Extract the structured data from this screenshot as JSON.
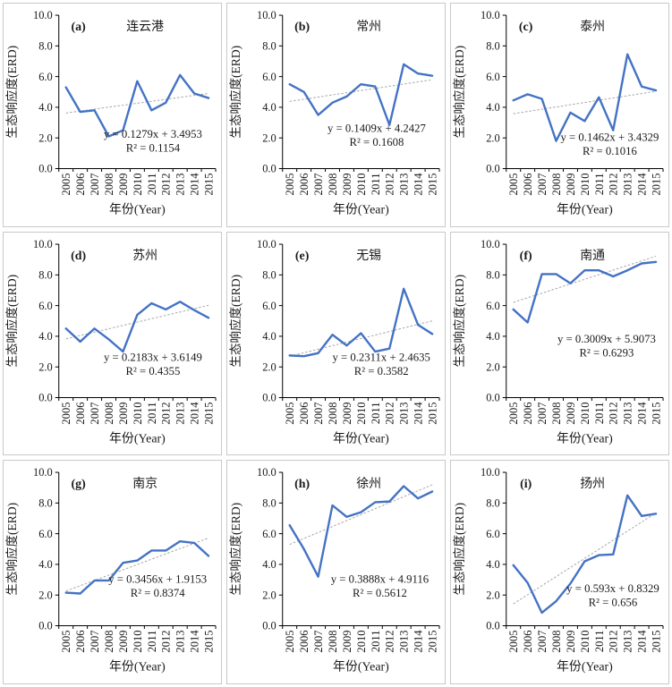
{
  "figure": {
    "ylabel": "生态响应度(ERD)",
    "xlabel": "年份(Year)",
    "years": [
      "2005",
      "2006",
      "2007",
      "2008",
      "2009",
      "2010",
      "2011",
      "2012",
      "2013",
      "2014",
      "2015"
    ],
    "yticks": [
      "0.0",
      "2.0",
      "4.0",
      "6.0",
      "8.0",
      "10.0"
    ],
    "ylim": [
      0,
      10
    ],
    "line_color": "#4472C4",
    "trend_color": "#a6a6a6",
    "axis_color": "#000000",
    "title_color": "#3d3d3d"
  },
  "chart_data": [
    {
      "type": "line",
      "panel": "(a)",
      "title": "连云港",
      "values": [
        5.3,
        3.7,
        3.8,
        2.1,
        2.5,
        5.7,
        3.8,
        4.3,
        6.1,
        4.9,
        4.6
      ],
      "trend": {
        "slope": 0.1279,
        "intercept": 3.4953
      },
      "equation": "y = 0.1279x + 3.4953",
      "r2": "R² = 0.1154",
      "eq_pos": [
        0.6,
        0.8
      ]
    },
    {
      "type": "line",
      "panel": "(b)",
      "title": "常州",
      "values": [
        5.5,
        5.0,
        3.5,
        4.3,
        4.7,
        5.5,
        5.35,
        2.85,
        6.8,
        6.2,
        6.05
      ],
      "trend": {
        "slope": 0.1409,
        "intercept": 4.2427
      },
      "equation": "y = 0.1409x + 4.2427",
      "r2": "R² = 0.1608",
      "eq_pos": [
        0.6,
        0.76
      ]
    },
    {
      "type": "line",
      "panel": "(c)",
      "title": "泰州",
      "values": [
        4.45,
        4.85,
        4.55,
        1.8,
        3.65,
        3.1,
        4.65,
        2.5,
        7.45,
        5.35,
        5.1
      ],
      "trend": {
        "slope": 0.1462,
        "intercept": 3.4329
      },
      "equation": "y = 0.1462x + 3.4329",
      "r2": "R² = 0.1016",
      "eq_pos": [
        0.66,
        0.82
      ]
    },
    {
      "type": "line",
      "panel": "(d)",
      "title": "苏州",
      "values": [
        4.5,
        3.65,
        4.5,
        3.8,
        3.0,
        5.4,
        6.15,
        5.75,
        6.25,
        5.7,
        5.2
      ],
      "trend": {
        "slope": 0.2183,
        "intercept": 3.6149
      },
      "equation": "y = 0.2183x + 3.6149",
      "r2": "R² = 0.4355",
      "eq_pos": [
        0.6,
        0.76
      ]
    },
    {
      "type": "line",
      "panel": "(e)",
      "title": "无锡",
      "values": [
        2.75,
        2.7,
        2.9,
        4.1,
        3.4,
        4.2,
        3.0,
        3.2,
        7.1,
        4.75,
        4.15
      ],
      "trend": {
        "slope": 0.2311,
        "intercept": 2.4635
      },
      "equation": "y = 0.2311x + 2.4635",
      "r2": "R² = 0.3582",
      "eq_pos": [
        0.63,
        0.76
      ]
    },
    {
      "type": "line",
      "panel": "(f)",
      "title": "南通",
      "values": [
        5.75,
        4.9,
        8.05,
        8.05,
        7.45,
        8.3,
        8.3,
        7.9,
        8.3,
        8.75,
        8.85
      ],
      "trend": {
        "slope": 0.3009,
        "intercept": 5.9073
      },
      "equation": "y = 0.3009x + 5.9073",
      "r2": "R² = 0.6293",
      "eq_pos": [
        0.64,
        0.64
      ]
    },
    {
      "type": "line",
      "panel": "(g)",
      "title": "南京",
      "values": [
        2.15,
        2.1,
        2.95,
        2.95,
        4.1,
        4.25,
        4.9,
        4.9,
        5.5,
        5.4,
        4.55
      ],
      "trend": {
        "slope": 0.3456,
        "intercept": 1.9153
      },
      "equation": "y = 0.3456x + 1.9153",
      "r2": "R² = 0.8374",
      "eq_pos": [
        0.63,
        0.72
      ]
    },
    {
      "type": "line",
      "panel": "(h)",
      "title": "徐州",
      "values": [
        6.55,
        5.0,
        3.2,
        7.85,
        7.1,
        7.4,
        8.05,
        8.1,
        9.1,
        8.3,
        8.75
      ],
      "trend": {
        "slope": 0.3888,
        "intercept": 4.9116
      },
      "equation": "y = 0.3888x + 4.9116",
      "r2": "R² = 0.5612",
      "eq_pos": [
        0.62,
        0.72
      ]
    },
    {
      "type": "line",
      "panel": "(i)",
      "title": "扬州",
      "values": [
        3.95,
        2.8,
        0.85,
        1.6,
        2.75,
        4.2,
        4.6,
        4.65,
        8.5,
        7.15,
        7.3
      ],
      "trend": {
        "slope": 0.593,
        "intercept": 0.8329
      },
      "equation": "y = 0.593x + 0.8329",
      "r2": "R² = 0.656",
      "eq_pos": [
        0.68,
        0.78
      ]
    }
  ]
}
